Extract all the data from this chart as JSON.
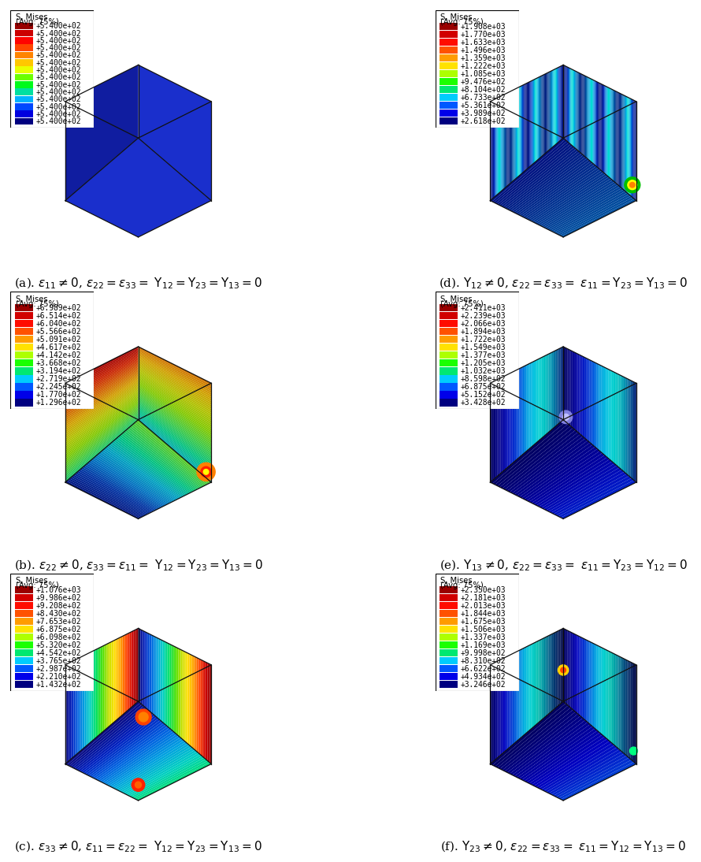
{
  "panels": [
    {
      "id": "a",
      "label_left": "(a). ",
      "label_math": "e11_ne0_rest0",
      "legend_title_line1": "S, Mises",
      "legend_title_line2": "(Avg: 75%)",
      "legend_values": [
        "+5.400e+02",
        "+5.400e+02",
        "+5.400e+02",
        "+5.400e+02",
        "+5.400e+02",
        "+5.400e+02",
        "+5.400e+02",
        "+5.400e+02",
        "+5.400e+02",
        "+5.400e+02",
        "+5.400e+02",
        "+5.400e+02",
        "+5.400e+02",
        "+5.400e+02"
      ],
      "pattern": "uniform_blue"
    },
    {
      "id": "b",
      "label_left": "(b). ",
      "label_math": "e22_ne0_rest0",
      "legend_title_line1": "S, Mises",
      "legend_title_line2": "(Avg: 75%)",
      "legend_values": [
        "+6.989e+02",
        "+6.514e+02",
        "+6.040e+02",
        "+5.566e+02",
        "+5.091e+02",
        "+4.617e+02",
        "+4.142e+02",
        "+3.668e+02",
        "+3.194e+02",
        "+2.719e+02",
        "+2.245e+02",
        "+1.770e+02",
        "+1.296e+02"
      ],
      "pattern": "green_diagonal"
    },
    {
      "id": "c",
      "label_left": "(c). ",
      "label_math": "e33_ne0_rest0",
      "legend_title_line1": "S, Mises",
      "legend_title_line2": "(Avg: 75%)",
      "legend_values": [
        "+1.076e+03",
        "+9.986e+02",
        "+9.208e+02",
        "+8.430e+02",
        "+7.653e+02",
        "+6.875e+02",
        "+6.098e+02",
        "+5.320e+02",
        "+4.542e+02",
        "+3.765e+02",
        "+2.987e+02",
        "+2.210e+02",
        "+1.432e+02"
      ],
      "pattern": "rainbow_horiz"
    },
    {
      "id": "d",
      "label_left": "(d). ",
      "label_math": "g12_ne0_rest0",
      "legend_title_line1": "S, Mises",
      "legend_title_line2": "(Avg: 75%)",
      "legend_values": [
        "+1.908e+03",
        "+1.770e+03",
        "+1.633e+03",
        "+1.496e+03",
        "+1.359e+03",
        "+1.222e+03",
        "+1.085e+03",
        "+9.476e+02",
        "+8.104e+02",
        "+6.733e+02",
        "+5.361e+02",
        "+3.989e+02",
        "+2.618e+02"
      ],
      "pattern": "cyan_vertical"
    },
    {
      "id": "e",
      "label_left": "(e). ",
      "label_math": "g13_ne0_rest0",
      "legend_title_line1": "S, Mises",
      "legend_title_line2": "(Avg: 75%)",
      "legend_values": [
        "+2.411e+03",
        "+2.239e+03",
        "+2.066e+03",
        "+1.894e+03",
        "+1.722e+03",
        "+1.549e+03",
        "+1.377e+03",
        "+1.205e+03",
        "+1.032e+03",
        "+8.598e+02",
        "+6.875e+02",
        "+5.152e+02",
        "+3.428e+02"
      ],
      "pattern": "blue_horiz"
    },
    {
      "id": "f",
      "label_left": "(f). ",
      "label_math": "g23_ne0_rest0",
      "legend_title_line1": "S, Mises",
      "legend_title_line2": "(Avg: 75%)",
      "legend_values": [
        "+2.350e+03",
        "+2.181e+03",
        "+2.013e+03",
        "+1.844e+03",
        "+1.675e+03",
        "+1.506e+03",
        "+1.337e+03",
        "+1.169e+03",
        "+9.998e+02",
        "+8.310e+02",
        "+6.622e+02",
        "+4.934e+02",
        "+3.246e+02"
      ],
      "pattern": "blue_cyan_horiz"
    }
  ],
  "label_fontsize": 11,
  "legend_fontsize": 7.2,
  "background_color": "#ffffff"
}
